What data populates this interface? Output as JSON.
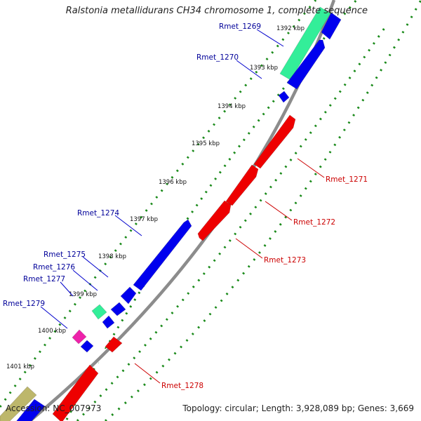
{
  "title": "Ralstonia metallidurans CH34 chromosome 1, complete sequence",
  "footer": {
    "accession": "Accession: NC_007973",
    "summary": "Topology: circular; Length: 3,928,089 bp; Genes: 3,669"
  },
  "colors": {
    "background": "#ffffff",
    "backbone": "#8c8c8c",
    "tick_dots": "#1a8a1a",
    "forward_strand": "#0000ee",
    "reverse_strand": "#ee0000",
    "feature_green": "#33ee99",
    "feature_magenta": "#ee22aa",
    "feature_khaki": "#bdb76b",
    "label_forward": "#000099",
    "label_reverse": "#cc0000"
  },
  "ruler": {
    "unit": "kbp",
    "ticks": [
      "1392 kbp",
      "1393 kbp",
      "1394 kbp",
      "1395 kbp",
      "1396 kbp",
      "1397 kbp",
      "1398 kbp",
      "1399 kbp",
      "1400 kbp",
      "1401 kbp"
    ]
  },
  "features": [
    {
      "name": "Rmet_1269",
      "strand": "forward"
    },
    {
      "name": "Rmet_1270",
      "strand": "forward"
    },
    {
      "name": "Rmet_1271",
      "strand": "reverse"
    },
    {
      "name": "Rmet_1272",
      "strand": "reverse"
    },
    {
      "name": "Rmet_1273",
      "strand": "reverse"
    },
    {
      "name": "Rmet_1274",
      "strand": "forward"
    },
    {
      "name": "Rmet_1275",
      "strand": "forward"
    },
    {
      "name": "Rmet_1276",
      "strand": "forward"
    },
    {
      "name": "Rmet_1277",
      "strand": "forward"
    },
    {
      "name": "Rmet_1278",
      "strand": "reverse"
    },
    {
      "name": "Rmet_1279",
      "strand": "forward"
    }
  ]
}
